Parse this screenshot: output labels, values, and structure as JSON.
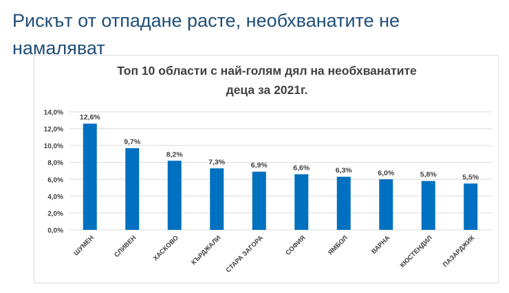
{
  "page": {
    "headline": "Рискът от отпадане расте, необхванатите не намаляват"
  },
  "chart_data": {
    "type": "bar",
    "title_lines": [
      "Топ 10 области с най-голям дял на необхванатите",
      "деца за 2021г."
    ],
    "categories": [
      "ШУМЕН",
      "СЛИВЕН",
      "ХАСКОВО",
      "КЪРДЖАЛИ",
      "СТАРА ЗАГОРА",
      "СОФИЯ",
      "ЯМБОЛ",
      "ВАРНА",
      "КЮСТЕНДИЛ",
      "ПАЗАРДЖИК"
    ],
    "values": [
      12.6,
      9.7,
      8.2,
      7.3,
      6.9,
      6.6,
      6.3,
      6.0,
      5.8,
      5.5
    ],
    "value_labels": [
      "12,6%",
      "9,7%",
      "8,2%",
      "7,3%",
      "6,9%",
      "6,6%",
      "6,3%",
      "6,0%",
      "5,8%",
      "5,5%"
    ],
    "y_ticks": [
      0,
      2,
      4,
      6,
      8,
      10,
      12,
      14
    ],
    "y_tick_labels": [
      "0,0%",
      "2,0%",
      "4,0%",
      "6,0%",
      "8,0%",
      "10,0%",
      "12,0%",
      "14,0%"
    ],
    "ylim": [
      0,
      14
    ],
    "xlabel": "",
    "ylabel": "",
    "grid": true,
    "legend": "none",
    "bar_color": "#0070c0",
    "grid_color": "#d9d9d9"
  }
}
